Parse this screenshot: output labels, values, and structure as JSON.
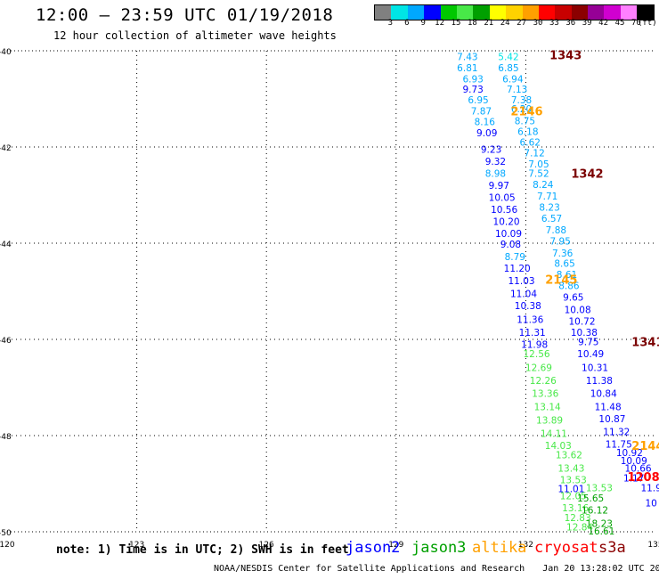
{
  "header": {
    "title": "12:00 – 23:59 UTC 01/19/2018",
    "subtitle": "12 hour collection of altimeter wave heights"
  },
  "legend": {
    "labels": [
      "3",
      "6",
      "9",
      "12",
      "15",
      "18",
      "21",
      "24",
      "27",
      "30",
      "33",
      "36",
      "39",
      "42",
      "45",
      "70",
      "(ft)"
    ],
    "colors": [
      "#808080",
      "#00e5e5",
      "#00a8ff",
      "#0000ff",
      "#00c800",
      "#48e848",
      "#00a000",
      "#ffff00",
      "#ffd200",
      "#ffa000",
      "#ff0000",
      "#c80000",
      "#8b0000",
      "#960096",
      "#d000d0",
      "#ff80ff",
      "#000000"
    ]
  },
  "axes": {
    "lat_ticks": [
      -40,
      -42,
      -44,
      -46,
      -48,
      -50
    ],
    "lon_ticks": [
      120,
      123,
      126,
      129,
      132,
      135
    ],
    "lat_labels": [
      "-40",
      "-42",
      "-44",
      "-46",
      "-48",
      "-50"
    ],
    "lon_labels": [
      "120",
      "123",
      "126",
      "129",
      "132",
      "135"
    ]
  },
  "passes": [
    {
      "id": "1343",
      "color": "#7a0000",
      "label_lat": -40.08,
      "label_lon": 132.55
    },
    {
      "id": "2146",
      "color": "#ffa000",
      "label_lat": -41.25,
      "label_lon": 131.65
    },
    {
      "id": "1342",
      "color": "#7a0000",
      "label_lat": -42.55,
      "label_lon": 133.05
    },
    {
      "id": "2145",
      "color": "#ffa000",
      "label_lat": -44.75,
      "label_lon": 132.45
    },
    {
      "id": "1341",
      "color": "#7a0000",
      "label_lat": -46.05,
      "label_lon": 134.45
    },
    {
      "id": "2144",
      "color": "#ffa000",
      "label_lat": -48.2,
      "label_lon": 134.45
    },
    {
      "id": "1208",
      "color": "#ff0000",
      "label_lat": -48.85,
      "label_lon": 134.35
    }
  ],
  "observations": [
    {
      "lat": -40.12,
      "lon": 130.65,
      "swh": "7.43",
      "sat": "jason3",
      "color": "#00a8ff"
    },
    {
      "lat": -40.12,
      "lon": 131.6,
      "swh": "5.42",
      "sat": "altika",
      "color": "#00e5e5"
    },
    {
      "lat": -40.35,
      "lon": 130.65,
      "swh": "6.81",
      "sat": "jason3",
      "color": "#00a8ff"
    },
    {
      "lat": -40.35,
      "lon": 131.6,
      "swh": "6.85",
      "sat": "altika",
      "color": "#00a8ff"
    },
    {
      "lat": -40.58,
      "lon": 130.78,
      "swh": "6.93",
      "sat": "jason3",
      "color": "#00a8ff"
    },
    {
      "lat": -40.58,
      "lon": 131.7,
      "swh": "6.94",
      "sat": "altika",
      "color": "#00a8ff"
    },
    {
      "lat": -40.8,
      "lon": 130.78,
      "swh": "9.73",
      "sat": "jason3",
      "color": "#0000ff"
    },
    {
      "lat": -40.8,
      "lon": 131.8,
      "swh": "7.13",
      "sat": "altika",
      "color": "#00a8ff"
    },
    {
      "lat": -41.02,
      "lon": 130.9,
      "swh": "6.95",
      "sat": "jason3",
      "color": "#00a8ff"
    },
    {
      "lat": -41.02,
      "lon": 131.9,
      "swh": "7.38",
      "sat": "altika",
      "color": "#00a8ff"
    },
    {
      "lat": -41.25,
      "lon": 130.97,
      "swh": "7.87",
      "sat": "jason3",
      "color": "#00a8ff"
    },
    {
      "lat": -41.2,
      "lon": 131.9,
      "swh": "6.20",
      "sat": "altika",
      "color": "#00a8ff"
    },
    {
      "lat": -41.47,
      "lon": 131.05,
      "swh": "8.16",
      "sat": "jason3",
      "color": "#00a8ff"
    },
    {
      "lat": -41.45,
      "lon": 131.98,
      "swh": "8.75",
      "sat": "altika",
      "color": "#00a8ff"
    },
    {
      "lat": -41.7,
      "lon": 131.1,
      "swh": "9.09",
      "sat": "jason3",
      "color": "#0000ff"
    },
    {
      "lat": -41.68,
      "lon": 132.05,
      "swh": "6.18",
      "sat": "altika",
      "color": "#00a8ff"
    },
    {
      "lat": -41.9,
      "lon": 132.1,
      "swh": "6.62",
      "sat": "altika",
      "color": "#00a8ff"
    },
    {
      "lat": -42.05,
      "lon": 131.2,
      "swh": "9.23",
      "sat": "jason3",
      "color": "#0000ff"
    },
    {
      "lat": -42.12,
      "lon": 132.2,
      "swh": "7.12",
      "sat": "altika",
      "color": "#00a8ff"
    },
    {
      "lat": -42.3,
      "lon": 131.3,
      "swh": "9.32",
      "sat": "jason3",
      "color": "#0000ff"
    },
    {
      "lat": -42.35,
      "lon": 132.3,
      "swh": "7.05",
      "sat": "altika",
      "color": "#00a8ff"
    },
    {
      "lat": -42.55,
      "lon": 131.3,
      "swh": "8.98",
      "sat": "jason3",
      "color": "#00a8ff"
    },
    {
      "lat": -42.55,
      "lon": 132.3,
      "swh": "7.52",
      "sat": "altika",
      "color": "#00a8ff"
    },
    {
      "lat": -42.8,
      "lon": 131.38,
      "swh": "9.97",
      "sat": "jason3",
      "color": "#0000ff"
    },
    {
      "lat": -42.78,
      "lon": 132.4,
      "swh": "8.24",
      "sat": "altika",
      "color": "#00a8ff"
    },
    {
      "lat": -43.05,
      "lon": 131.45,
      "swh": "10.05",
      "sat": "jason3",
      "color": "#0000ff"
    },
    {
      "lat": -43.02,
      "lon": 132.5,
      "swh": "7.71",
      "sat": "altika",
      "color": "#00a8ff"
    },
    {
      "lat": -43.3,
      "lon": 131.5,
      "swh": "10.56",
      "sat": "jason3",
      "color": "#0000ff"
    },
    {
      "lat": -43.25,
      "lon": 132.55,
      "swh": "8.23",
      "sat": "altika",
      "color": "#00a8ff"
    },
    {
      "lat": -43.55,
      "lon": 131.55,
      "swh": "10.20",
      "sat": "jason3",
      "color": "#0000ff"
    },
    {
      "lat": -43.48,
      "lon": 132.6,
      "swh": "6.57",
      "sat": "altika",
      "color": "#00a8ff"
    },
    {
      "lat": -43.8,
      "lon": 131.6,
      "swh": "10.09",
      "sat": "jason3",
      "color": "#0000ff"
    },
    {
      "lat": -43.72,
      "lon": 132.7,
      "swh": "7.88",
      "sat": "altika",
      "color": "#00a8ff"
    },
    {
      "lat": -43.95,
      "lon": 132.8,
      "swh": "7.95",
      "sat": "altika",
      "color": "#00a8ff"
    },
    {
      "lat": -44.02,
      "lon": 131.65,
      "swh": "9.08",
      "sat": "jason3",
      "color": "#0000ff"
    },
    {
      "lat": -44.2,
      "lon": 132.85,
      "swh": "7.36",
      "sat": "altika",
      "color": "#00a8ff"
    },
    {
      "lat": -44.28,
      "lon": 131.75,
      "swh": "8.79",
      "sat": "jason3",
      "color": "#00a8ff"
    },
    {
      "lat": -44.42,
      "lon": 132.9,
      "swh": "8.65",
      "sat": "altika",
      "color": "#00a8ff"
    },
    {
      "lat": -44.52,
      "lon": 131.8,
      "swh": "11.20",
      "sat": "jason3",
      "color": "#0000ff"
    },
    {
      "lat": -44.65,
      "lon": 132.95,
      "swh": "8.61",
      "sat": "altika",
      "color": "#00a8ff"
    },
    {
      "lat": -44.78,
      "lon": 131.9,
      "swh": "11.03",
      "sat": "jason3",
      "color": "#0000ff"
    },
    {
      "lat": -44.88,
      "lon": 133.0,
      "swh": "8.86",
      "sat": "altika",
      "color": "#00a8ff"
    },
    {
      "lat": -45.05,
      "lon": 131.95,
      "swh": "11.04",
      "sat": "jason3",
      "color": "#0000ff"
    },
    {
      "lat": -45.12,
      "lon": 133.1,
      "swh": "9.65",
      "sat": "altika",
      "color": "#0000ff"
    },
    {
      "lat": -45.3,
      "lon": 132.05,
      "swh": "10.38",
      "sat": "jason3",
      "color": "#0000ff"
    },
    {
      "lat": -45.38,
      "lon": 133.2,
      "swh": "10.08",
      "sat": "altika",
      "color": "#0000ff"
    },
    {
      "lat": -45.58,
      "lon": 132.1,
      "swh": "11.36",
      "sat": "jason3",
      "color": "#0000ff"
    },
    {
      "lat": -45.62,
      "lon": 133.3,
      "swh": "10.72",
      "sat": "altika",
      "color": "#0000ff"
    },
    {
      "lat": -45.85,
      "lon": 132.15,
      "swh": "11.31",
      "sat": "jason3",
      "color": "#0000ff"
    },
    {
      "lat": -45.85,
      "lon": 133.35,
      "swh": "10.38",
      "sat": "altika",
      "color": "#0000ff"
    },
    {
      "lat": -46.1,
      "lon": 132.2,
      "swh": "11.98",
      "sat": "jason3",
      "color": "#0000ff"
    },
    {
      "lat": -46.05,
      "lon": 133.45,
      "swh": "9.75",
      "sat": "altika",
      "color": "#0000ff"
    },
    {
      "lat": -46.3,
      "lon": 132.25,
      "swh": "12.56",
      "sat": "jason3",
      "color": "#48e848"
    },
    {
      "lat": -46.3,
      "lon": 133.5,
      "swh": "10.49",
      "sat": "altika",
      "color": "#0000ff"
    },
    {
      "lat": -46.58,
      "lon": 132.3,
      "swh": "12.69",
      "sat": "jason3",
      "color": "#48e848"
    },
    {
      "lat": -46.58,
      "lon": 133.6,
      "swh": "10.31",
      "sat": "altika",
      "color": "#0000ff"
    },
    {
      "lat": -46.85,
      "lon": 132.4,
      "swh": "12.26",
      "sat": "jason3",
      "color": "#48e848"
    },
    {
      "lat": -46.85,
      "lon": 133.7,
      "swh": "11.38",
      "sat": "altika",
      "color": "#0000ff"
    },
    {
      "lat": -47.12,
      "lon": 132.45,
      "swh": "13.36",
      "sat": "jason3",
      "color": "#48e848"
    },
    {
      "lat": -47.12,
      "lon": 133.8,
      "swh": "10.84",
      "sat": "altika",
      "color": "#0000ff"
    },
    {
      "lat": -47.4,
      "lon": 132.5,
      "swh": "13.14",
      "sat": "jason3",
      "color": "#48e848"
    },
    {
      "lat": -47.4,
      "lon": 133.9,
      "swh": "11.48",
      "sat": "altika",
      "color": "#0000ff"
    },
    {
      "lat": -47.68,
      "lon": 132.55,
      "swh": "13.89",
      "sat": "jason3",
      "color": "#48e848"
    },
    {
      "lat": -47.65,
      "lon": 134.0,
      "swh": "10.87",
      "sat": "altika",
      "color": "#0000ff"
    },
    {
      "lat": -47.95,
      "lon": 132.65,
      "swh": "14.11",
      "sat": "jason3",
      "color": "#48e848"
    },
    {
      "lat": -47.92,
      "lon": 134.1,
      "swh": "11.32",
      "sat": "altika",
      "color": "#0000ff"
    },
    {
      "lat": -48.2,
      "lon": 132.75,
      "swh": "14.03",
      "sat": "jason3",
      "color": "#48e848"
    },
    {
      "lat": -48.18,
      "lon": 134.15,
      "swh": "11.75",
      "sat": "altika",
      "color": "#0000ff"
    },
    {
      "lat": -48.4,
      "lon": 133.0,
      "swh": "13.62",
      "sat": "jason3",
      "color": "#48e848"
    },
    {
      "lat": -48.35,
      "lon": 134.4,
      "swh": "10.92",
      "sat": "altika",
      "color": "#0000ff"
    },
    {
      "lat": -48.52,
      "lon": 134.5,
      "swh": "10.09",
      "sat": "altika",
      "color": "#0000ff"
    },
    {
      "lat": -48.68,
      "lon": 133.05,
      "swh": "13.43",
      "sat": "jason3",
      "color": "#48e848"
    },
    {
      "lat": -48.68,
      "lon": 134.6,
      "swh": "10.66",
      "sat": "altika",
      "color": "#0000ff"
    },
    {
      "lat": -48.92,
      "lon": 133.1,
      "swh": "13.53",
      "sat": "jason3",
      "color": "#48e848"
    },
    {
      "lat": -48.88,
      "lon": 134.5,
      "swh": "1.17",
      "sat": "altika",
      "color": "#0000ff"
    },
    {
      "lat": -49.1,
      "lon": 133.05,
      "swh": "11.01",
      "sat": "jason3",
      "color": "#0000ff"
    },
    {
      "lat": -49.08,
      "lon": 133.7,
      "swh": "13.53",
      "sat": "jason3",
      "color": "#48e848"
    },
    {
      "lat": -49.08,
      "lon": 134.9,
      "swh": "11.9",
      "sat": "altika",
      "color": "#0000ff"
    },
    {
      "lat": -49.25,
      "lon": 133.1,
      "swh": "12.05",
      "sat": "jason3",
      "color": "#48e848"
    },
    {
      "lat": -49.3,
      "lon": 133.5,
      "swh": "15.65",
      "sat": "jason3",
      "color": "#00a000"
    },
    {
      "lat": -49.5,
      "lon": 133.15,
      "swh": "13.16",
      "sat": "jason3",
      "color": "#48e848"
    },
    {
      "lat": -49.55,
      "lon": 133.6,
      "swh": "16.12",
      "sat": "jason3",
      "color": "#00a000"
    },
    {
      "lat": -49.4,
      "lon": 134.9,
      "swh": "10",
      "sat": "altika",
      "color": "#0000ff"
    },
    {
      "lat": -49.7,
      "lon": 133.2,
      "swh": "12.83",
      "sat": "jason3",
      "color": "#48e848"
    },
    {
      "lat": -49.82,
      "lon": 133.7,
      "swh": "18.23",
      "sat": "jason3",
      "color": "#00a000"
    },
    {
      "lat": -49.9,
      "lon": 133.25,
      "swh": "12.84",
      "sat": "jason3",
      "color": "#48e848"
    },
    {
      "lat": -49.98,
      "lon": 133.75,
      "swh": "16.61",
      "sat": "jason3",
      "color": "#00a000"
    }
  ],
  "note": "note: 1) Time is in UTC; 2) SWH is in feet",
  "satellites": [
    {
      "name": "jason2",
      "color": "#0000ff"
    },
    {
      "name": "jason3",
      "color": "#00a000"
    },
    {
      "name": "altika",
      "color": "#ffa000"
    },
    {
      "name": "cryosat",
      "color": "#ff0000"
    },
    {
      "name": "s3a",
      "color": "#8b0000"
    }
  ],
  "footer": {
    "credit": "NOAA/NESDIS Center for Satellite Applications and Research",
    "timestamp": "Jan 20 13:28:02 UTC 2018"
  }
}
